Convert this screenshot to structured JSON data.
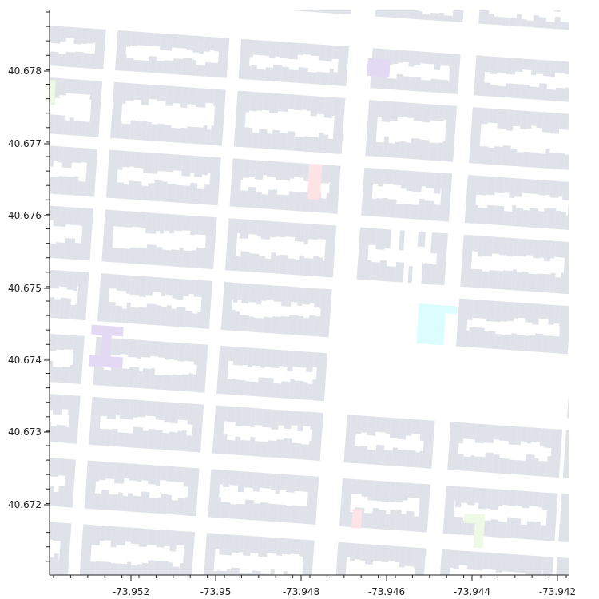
{
  "map": {
    "type": "building-footprint-map",
    "x_axis": {
      "ticks": [
        -73.952,
        -73.95,
        -73.948,
        -73.946,
        -73.944,
        -73.942
      ],
      "tick_labels": [
        "-73.952",
        "-73.95",
        "-73.948",
        "-73.946",
        "-73.944",
        "-73.942"
      ]
    },
    "y_axis": {
      "ticks": [
        40.678,
        40.677,
        40.676,
        40.675,
        40.674,
        40.673,
        40.672
      ],
      "tick_labels": [
        "40.678",
        "40.677",
        "40.676",
        "40.675",
        "40.674",
        "40.673",
        "40.672"
      ]
    },
    "colors": {
      "background": "#ffffff",
      "residential": "#dfe2e8",
      "school": "#e4d9f5",
      "commercial": "#fde3e6",
      "park": "#eef9e6",
      "public_facility": "#dcfdfd"
    }
  }
}
